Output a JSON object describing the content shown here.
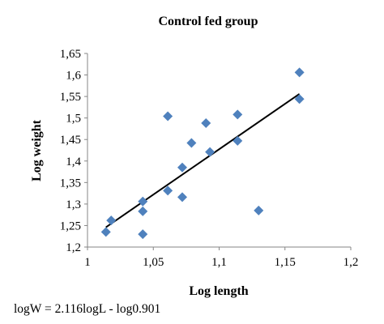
{
  "chart_data": {
    "type": "scatter",
    "title": "Control fed group",
    "xlabel": "Log length",
    "ylabel": "Log weight",
    "xlim": [
      1,
      1.2
    ],
    "ylim": [
      1.2,
      1.65
    ],
    "x_ticks": [
      "1",
      "1,05",
      "1,1",
      "1,15",
      "1,2"
    ],
    "y_ticks": [
      "1,2",
      "1,25",
      "1,3",
      "1,35",
      "1,4",
      "1,45",
      "1,5",
      "1,55",
      "1,6",
      "1,65"
    ],
    "x_tick_values": [
      1,
      1.05,
      1.1,
      1.15,
      1.2
    ],
    "y_tick_values": [
      1.2,
      1.25,
      1.3,
      1.35,
      1.4,
      1.45,
      1.5,
      1.55,
      1.6,
      1.65
    ],
    "grid": false,
    "marker_color": "#4F81BD",
    "trendline_color": "#000000",
    "series": [
      {
        "marker": "diamond",
        "points": [
          {
            "x": 1.014,
            "y": 1.235
          },
          {
            "x": 1.018,
            "y": 1.262
          },
          {
            "x": 1.042,
            "y": 1.306
          },
          {
            "x": 1.042,
            "y": 1.283
          },
          {
            "x": 1.042,
            "y": 1.23
          },
          {
            "x": 1.061,
            "y": 1.504
          },
          {
            "x": 1.061,
            "y": 1.331
          },
          {
            "x": 1.072,
            "y": 1.385
          },
          {
            "x": 1.072,
            "y": 1.316
          },
          {
            "x": 1.079,
            "y": 1.442
          },
          {
            "x": 1.09,
            "y": 1.488
          },
          {
            "x": 1.093,
            "y": 1.421
          },
          {
            "x": 1.114,
            "y": 1.508
          },
          {
            "x": 1.114,
            "y": 1.447
          },
          {
            "x": 1.13,
            "y": 1.285
          },
          {
            "x": 1.161,
            "y": 1.606
          },
          {
            "x": 1.161,
            "y": 1.544
          }
        ]
      }
    ],
    "trendline": {
      "x": [
        1.014,
        1.161
      ],
      "y": [
        1.246,
        1.556
      ]
    },
    "annotation": "logW = 2.116logL - log0.901"
  }
}
